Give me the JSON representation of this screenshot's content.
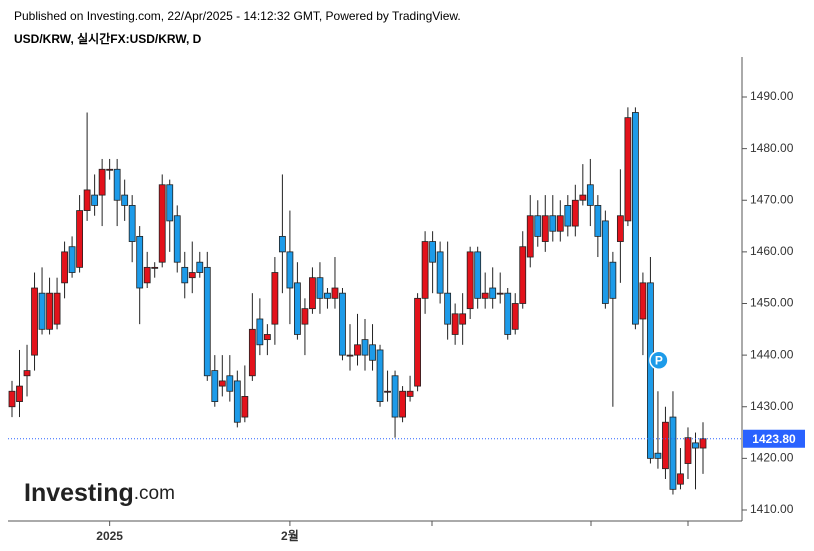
{
  "header": {
    "title": "Published on Investing.com, 22/Apr/2025 - 14:12:32 GMT, Powered by TradingView.",
    "symbol": "USD/KRW, 실시간FX:USD/KRW, D"
  },
  "logo": {
    "brand": "Investing",
    "suffix": ".com"
  },
  "chart_data": {
    "type": "candlestick",
    "categories": [
      null,
      null,
      null,
      null,
      null,
      null,
      null,
      null,
      null,
      null,
      null,
      null,
      null,
      "2025",
      null,
      null,
      null,
      null,
      null,
      null,
      null,
      null,
      null,
      null,
      null,
      null,
      null,
      null,
      null,
      null,
      null,
      null,
      null,
      null,
      null,
      null,
      null,
      "2월",
      null,
      null,
      null,
      null,
      null,
      null,
      null,
      null,
      null,
      null,
      null,
      null,
      null,
      null,
      null,
      null,
      null,
      null,
      null,
      null,
      null,
      null,
      null,
      null,
      null,
      null,
      null,
      null,
      null,
      null,
      null,
      null,
      null,
      null,
      null,
      null,
      null,
      null,
      null,
      null,
      null,
      null,
      null,
      null,
      null,
      null,
      null,
      null,
      null,
      null,
      null,
      null,
      null,
      null,
      null
    ],
    "open": [
      1430,
      1431,
      1436,
      1440,
      1452,
      1445,
      1446,
      1454,
      1461,
      1457,
      1468,
      1471,
      1471,
      1476,
      1476,
      1471,
      1469,
      1463,
      1454,
      1457,
      1458,
      1473,
      1467,
      1457,
      1455,
      1458,
      1457,
      1437,
      1434,
      1436,
      1435,
      1428,
      1436,
      1447,
      1443,
      1446,
      1463,
      1460,
      1454,
      1446,
      1449,
      1455,
      1452,
      1451,
      1452,
      1440,
      1440,
      1443,
      1442,
      1441,
      1433,
      1436,
      1428,
      1432,
      1434,
      1451,
      1462,
      1460,
      1452,
      1444,
      1446,
      1449,
      1460,
      1451,
      1453,
      1452,
      1452,
      1445,
      1450,
      1459,
      1467,
      1462,
      1467,
      1464,
      1469,
      1465,
      1470,
      1473,
      1469,
      1466,
      1458,
      1462,
      1466,
      1487,
      1447,
      1454,
      1421,
      1418,
      1428,
      1415,
      1419,
      1423,
      1422
    ],
    "high": [
      1435,
      1441,
      1442,
      1456,
      1457,
      1455,
      1455,
      1462,
      1463,
      1471,
      1487,
      1475,
      1478,
      1478,
      1478,
      1474,
      1471,
      1465,
      1460,
      1458,
      1475,
      1474,
      1469,
      1460,
      1462,
      1460,
      1460,
      1440,
      1440,
      1440,
      1437,
      1438,
      1452,
      1451,
      1446,
      1459,
      1475,
      1468,
      1458,
      1451,
      1457,
      1458,
      1453,
      1459,
      1453,
      1446,
      1448,
      1447,
      1446,
      1442,
      1437,
      1437,
      1434,
      1436,
      1452,
      1464,
      1464,
      1462,
      1462,
      1450,
      1452,
      1461,
      1461,
      1456,
      1457,
      1456,
      1453,
      1452,
      1464,
      1471,
      1470,
      1471,
      1471,
      1470,
      1471,
      1473,
      1477,
      1478,
      1471,
      1468,
      1460,
      1476,
      1488,
      1488,
      1456,
      1459,
      1433,
      1430,
      1433,
      1422,
      1426,
      1425,
      1427
    ],
    "low": [
      1428,
      1428,
      1432,
      1437,
      1444,
      1444,
      1445,
      1451,
      1455,
      1456,
      1466,
      1467,
      1465,
      1474,
      1465,
      1466,
      1458,
      1446,
      1453,
      1455,
      1457,
      1460,
      1456,
      1451,
      1452,
      1455,
      1435,
      1430,
      1432,
      1431,
      1426,
      1427,
      1435,
      1440,
      1440,
      1442,
      1452,
      1446,
      1443,
      1440,
      1448,
      1448,
      1449,
      1449,
      1439,
      1437,
      1438,
      1437,
      1437,
      1430,
      1431,
      1424,
      1427,
      1431,
      1433,
      1448,
      1452,
      1450,
      1443,
      1442,
      1442,
      1447,
      1449,
      1449,
      1449,
      1450,
      1443,
      1444,
      1449,
      1457,
      1461,
      1460,
      1462,
      1462,
      1463,
      1463,
      1469,
      1465,
      1459,
      1449,
      1430,
      1454,
      1465,
      1445,
      1440,
      1419,
      1418,
      1416,
      1413,
      1414,
      1416,
      1414,
      1417
    ],
    "close": [
      1433,
      1434,
      1437,
      1453,
      1445,
      1452,
      1452,
      1460,
      1456,
      1468,
      1472,
      1469,
      1476,
      1476,
      1470,
      1469,
      1462,
      1453,
      1457,
      1457,
      1473,
      1466,
      1458,
      1454,
      1456,
      1456,
      1436,
      1431,
      1435,
      1433,
      1427,
      1432,
      1445,
      1442,
      1444,
      1456,
      1460,
      1453,
      1444,
      1449,
      1455,
      1451,
      1451,
      1453,
      1440,
      1440,
      1442,
      1440,
      1439,
      1431,
      1433,
      1428,
      1433,
      1433,
      1451,
      1462,
      1458,
      1452,
      1446,
      1448,
      1448,
      1460,
      1451,
      1452,
      1451,
      1452,
      1444,
      1450,
      1461,
      1467,
      1463,
      1467,
      1464,
      1467,
      1465,
      1470,
      1471,
      1469,
      1463,
      1450,
      1451,
      1467,
      1486,
      1446,
      1454,
      1420,
      1420,
      1427,
      1414,
      1417,
      1424,
      1422,
      1423.8
    ],
    "up_color": "#e3121b",
    "down_color": "#1d9be9",
    "last_price": {
      "value": 1423.8,
      "label": "1423.80"
    },
    "annotation": "P",
    "ylim": [
      1408.06,
      1497.75
    ],
    "yticks": [
      {
        "value": 1410,
        "label": "1410.00"
      },
      {
        "value": 1420,
        "label": "1420.00"
      },
      {
        "value": 1430,
        "label": "1430.00"
      },
      {
        "value": 1440,
        "label": "1440.00"
      },
      {
        "value": 1450,
        "label": "1450.00"
      },
      {
        "value": 1460,
        "label": "1460.00"
      },
      {
        "value": 1470,
        "label": "1470.00"
      },
      {
        "value": 1480,
        "label": "1480.00"
      },
      {
        "value": 1490,
        "label": "1490.00"
      }
    ]
  }
}
